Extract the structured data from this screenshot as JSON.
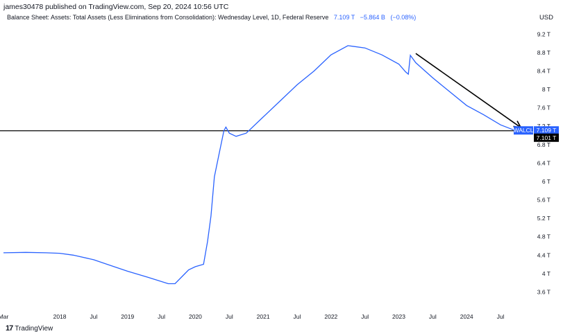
{
  "header": {
    "published": "james30478 published on TradingView.com, Sep 20, 2024 10:56 UTC",
    "series_title": "Balance Sheet: Assets: Total Assets (Less Eliminations from Consolidation): Wednesday Level, 1D, Federal Reserve",
    "last_value": "7.109 T",
    "change": "−5.864 B",
    "change_pct": "(−0.08%)",
    "currency": "USD"
  },
  "footer": {
    "logo_glyph": "17",
    "brand": "TradingView"
  },
  "price_tags": {
    "series_label": "WALCL",
    "series_value": "7.109 T",
    "hline_value": "7.101 T"
  },
  "colors": {
    "series": "#2962ff",
    "hline": "#000000",
    "arrow": "#000000",
    "axis_text": "#131722"
  },
  "chart_data": {
    "type": "line",
    "title": "Balance Sheet: Assets: Total Assets (Less Eliminations from Consolidation): Wednesday Level, 1D, Federal Reserve",
    "xlabel": "",
    "ylabel": "",
    "ylim": [
      3.2,
      9.4
    ],
    "xlim": [
      2017.17,
      2024.95
    ],
    "y_ticks": [
      3.6,
      4,
      4.4,
      4.8,
      5.2,
      5.6,
      6,
      6.4,
      6.8,
      7.2,
      7.6,
      8,
      8.4,
      8.8,
      9.2
    ],
    "y_tick_labels": [
      "3.6 T",
      "4 T",
      "4.4 T",
      "4.8 T",
      "5.2 T",
      "5.6 T",
      "6 T",
      "6.4 T",
      "6.8 T",
      "7.2 T",
      "7.6 T",
      "8 T",
      "8.4 T",
      "8.8 T",
      "9.2 T"
    ],
    "x_ticks": [
      {
        "x": 2017.17,
        "label": "Mar"
      },
      {
        "x": 2018.0,
        "label": "2018"
      },
      {
        "x": 2018.5,
        "label": "Jul"
      },
      {
        "x": 2019.0,
        "label": "2019"
      },
      {
        "x": 2019.5,
        "label": "Jul"
      },
      {
        "x": 2020.0,
        "label": "2020"
      },
      {
        "x": 2020.5,
        "label": "Jul"
      },
      {
        "x": 2021.0,
        "label": "2021"
      },
      {
        "x": 2021.5,
        "label": "Jul"
      },
      {
        "x": 2022.0,
        "label": "2022"
      },
      {
        "x": 2022.5,
        "label": "Jul"
      },
      {
        "x": 2023.0,
        "label": "2023"
      },
      {
        "x": 2023.5,
        "label": "Jul"
      },
      {
        "x": 2024.0,
        "label": "2024"
      },
      {
        "x": 2024.5,
        "label": "Jul"
      }
    ],
    "series": [
      {
        "points": [
          [
            2017.17,
            4.45
          ],
          [
            2017.5,
            4.46
          ],
          [
            2017.8,
            4.45
          ],
          [
            2018.0,
            4.44
          ],
          [
            2018.2,
            4.4
          ],
          [
            2018.5,
            4.3
          ],
          [
            2018.8,
            4.15
          ],
          [
            2019.0,
            4.05
          ],
          [
            2019.3,
            3.92
          ],
          [
            2019.6,
            3.78
          ],
          [
            2019.7,
            3.78
          ],
          [
            2019.82,
            3.96
          ],
          [
            2019.9,
            4.08
          ],
          [
            2020.0,
            4.15
          ],
          [
            2020.12,
            4.2
          ],
          [
            2020.18,
            4.7
          ],
          [
            2020.23,
            5.25
          ],
          [
            2020.28,
            6.1
          ],
          [
            2020.35,
            6.6
          ],
          [
            2020.42,
            7.1
          ],
          [
            2020.45,
            7.18
          ],
          [
            2020.5,
            7.05
          ],
          [
            2020.6,
            6.98
          ],
          [
            2020.75,
            7.05
          ],
          [
            2021.0,
            7.4
          ],
          [
            2021.25,
            7.75
          ],
          [
            2021.5,
            8.1
          ],
          [
            2021.75,
            8.4
          ],
          [
            2022.0,
            8.75
          ],
          [
            2022.25,
            8.95
          ],
          [
            2022.5,
            8.9
          ],
          [
            2022.75,
            8.75
          ],
          [
            2023.0,
            8.55
          ],
          [
            2023.1,
            8.38
          ],
          [
            2023.14,
            8.33
          ],
          [
            2023.17,
            8.74
          ],
          [
            2023.25,
            8.58
          ],
          [
            2023.5,
            8.25
          ],
          [
            2023.75,
            7.95
          ],
          [
            2024.0,
            7.65
          ],
          [
            2024.25,
            7.45
          ],
          [
            2024.5,
            7.23
          ],
          [
            2024.71,
            7.109
          ]
        ]
      }
    ],
    "horizontal_line": 7.101,
    "annotations": [
      {
        "type": "arrow",
        "from": [
          2023.25,
          8.78
        ],
        "to": [
          2024.8,
          7.17
        ]
      }
    ],
    "grid": false,
    "legend": "none"
  }
}
